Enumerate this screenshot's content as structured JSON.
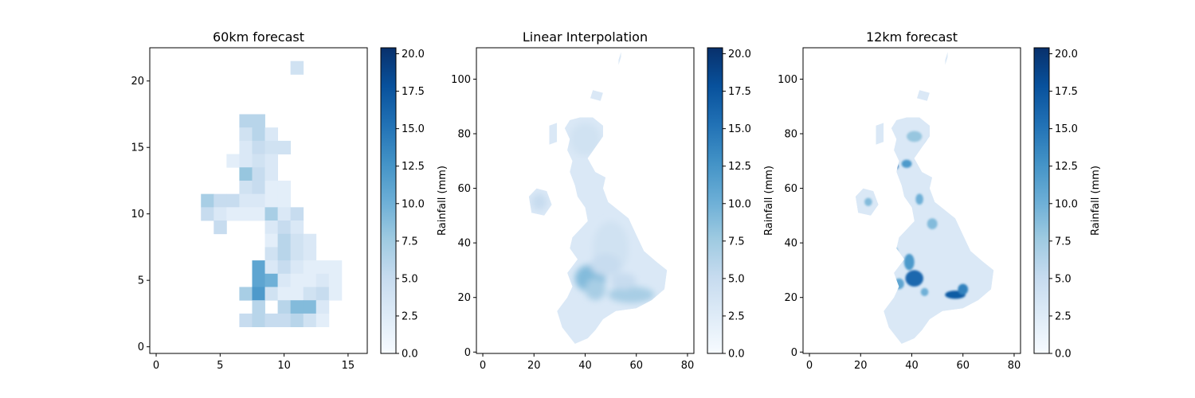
{
  "chart_data": [
    {
      "type": "heatmap",
      "title": "60km forecast",
      "xlim": [
        -0.5,
        16.5
      ],
      "ylim": [
        -0.5,
        22.5
      ],
      "xticks": [
        0,
        5,
        10,
        15
      ],
      "yticks": [
        0,
        5,
        10,
        15,
        20
      ],
      "xlabel": "",
      "ylabel": "",
      "colorbar": {
        "label": "Rainfall (mm)",
        "range": [
          0,
          20.4
        ],
        "ticks": [
          "0.0",
          "2.5",
          "5.0",
          "7.5",
          "10.0",
          "12.5",
          "15.0",
          "17.5",
          "20.0"
        ],
        "cmap": "Blues"
      },
      "cells": [
        [
          11,
          21,
          4
        ],
        [
          7,
          17,
          6
        ],
        [
          8,
          17,
          6
        ],
        [
          7,
          16,
          4
        ],
        [
          8,
          16,
          6
        ],
        [
          9,
          16,
          3
        ],
        [
          7,
          15,
          3
        ],
        [
          8,
          15,
          5
        ],
        [
          9,
          15,
          4
        ],
        [
          10,
          15,
          4
        ],
        [
          6,
          14,
          2
        ],
        [
          7,
          14,
          3
        ],
        [
          8,
          14,
          4
        ],
        [
          9,
          14,
          3
        ],
        [
          7,
          13,
          8
        ],
        [
          8,
          13,
          5
        ],
        [
          9,
          13,
          3
        ],
        [
          7,
          12,
          4
        ],
        [
          8,
          12,
          5
        ],
        [
          9,
          12,
          2
        ],
        [
          10,
          12,
          2
        ],
        [
          4,
          11,
          7
        ],
        [
          5,
          11,
          5
        ],
        [
          6,
          11,
          5
        ],
        [
          7,
          11,
          3
        ],
        [
          8,
          11,
          3
        ],
        [
          9,
          11,
          2
        ],
        [
          10,
          11,
          2
        ],
        [
          4,
          10,
          5
        ],
        [
          5,
          10,
          3
        ],
        [
          6,
          10,
          2
        ],
        [
          7,
          10,
          2
        ],
        [
          8,
          10,
          2
        ],
        [
          9,
          10,
          7
        ],
        [
          10,
          10,
          3
        ],
        [
          11,
          10,
          5
        ],
        [
          5,
          9,
          5
        ],
        [
          9,
          9,
          3
        ],
        [
          10,
          9,
          5
        ],
        [
          11,
          9,
          3
        ],
        [
          9,
          8,
          2
        ],
        [
          10,
          8,
          6
        ],
        [
          11,
          8,
          4
        ],
        [
          12,
          8,
          3
        ],
        [
          9,
          7,
          4
        ],
        [
          10,
          7,
          6
        ],
        [
          11,
          7,
          4
        ],
        [
          12,
          7,
          3
        ],
        [
          8,
          6,
          11
        ],
        [
          9,
          6,
          3
        ],
        [
          10,
          6,
          5
        ],
        [
          11,
          6,
          3
        ],
        [
          12,
          6,
          2
        ],
        [
          13,
          6,
          2
        ],
        [
          14,
          6,
          2
        ],
        [
          8,
          5,
          11
        ],
        [
          9,
          5,
          10
        ],
        [
          10,
          5,
          3
        ],
        [
          11,
          5,
          2
        ],
        [
          12,
          5,
          2
        ],
        [
          13,
          5,
          3
        ],
        [
          14,
          5,
          2
        ],
        [
          7,
          4,
          7
        ],
        [
          8,
          4,
          12
        ],
        [
          9,
          4,
          4
        ],
        [
          10,
          4,
          2
        ],
        [
          11,
          4,
          2
        ],
        [
          12,
          4,
          4
        ],
        [
          13,
          4,
          5
        ],
        [
          14,
          4,
          2
        ],
        [
          8,
          3,
          6
        ],
        [
          10,
          3,
          6
        ],
        [
          11,
          3,
          9
        ],
        [
          12,
          3,
          9
        ],
        [
          13,
          3,
          3
        ],
        [
          7,
          2,
          5
        ],
        [
          8,
          2,
          6
        ],
        [
          9,
          2,
          5
        ],
        [
          10,
          2,
          5
        ],
        [
          11,
          2,
          6
        ],
        [
          12,
          2,
          4
        ],
        [
          13,
          2,
          2
        ]
      ]
    },
    {
      "type": "heatmap",
      "title": "Linear Interpolation",
      "xlim": [
        -2.5,
        82.5
      ],
      "ylim": [
        -0.5,
        111.5
      ],
      "xticks": [
        0,
        20,
        40,
        60,
        80
      ],
      "yticks": [
        0,
        20,
        40,
        60,
        80,
        100
      ],
      "xlabel": "",
      "ylabel": "",
      "colorbar": {
        "label": "Rainfall (mm)",
        "range": [
          0,
          20.4
        ],
        "ticks": [
          "0.0",
          "2.5",
          "5.0",
          "7.5",
          "10.0",
          "12.5",
          "15.0",
          "17.5",
          "20.0"
        ],
        "cmap": "Blues"
      },
      "style": "smooth"
    },
    {
      "type": "heatmap",
      "title": "12km forecast",
      "xlim": [
        -2.5,
        82.5
      ],
      "ylim": [
        -0.5,
        111.5
      ],
      "xticks": [
        0,
        20,
        40,
        60,
        80
      ],
      "yticks": [
        0,
        20,
        40,
        60,
        80,
        100
      ],
      "xlabel": "",
      "ylabel": "",
      "colorbar": {
        "label": "Rainfall (mm)",
        "range": [
          0,
          20.4
        ],
        "ticks": [
          "0.0",
          "2.5",
          "5.0",
          "7.5",
          "10.0",
          "12.5",
          "15.0",
          "17.5",
          "20.0"
        ],
        "cmap": "Blues"
      },
      "style": "detailed"
    }
  ]
}
